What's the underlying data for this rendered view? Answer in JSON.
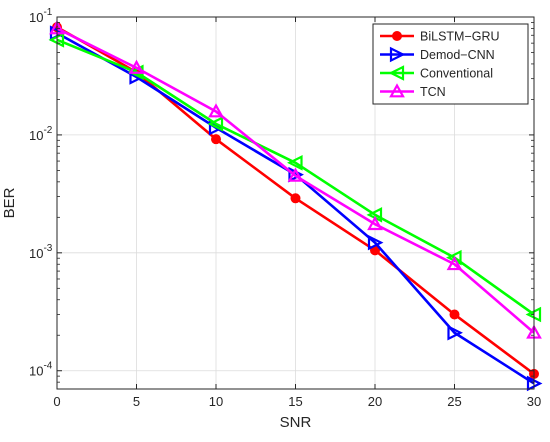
{
  "chart_data": {
    "type": "line",
    "title": "",
    "xlabel": "SNR",
    "ylabel": "BER",
    "x": [
      0,
      5,
      10,
      15,
      20,
      25,
      30
    ],
    "xlim": [
      0,
      30
    ],
    "ylim": [
      7e-05,
      0.1
    ],
    "yscale": "log",
    "grid": true,
    "legend_position": "top-right",
    "x_ticks": [
      {
        "value": 0,
        "label": "0"
      },
      {
        "value": 5,
        "label": "5"
      },
      {
        "value": 10,
        "label": "10"
      },
      {
        "value": 15,
        "label": "15"
      },
      {
        "value": 20,
        "label": "20"
      },
      {
        "value": 25,
        "label": "25"
      },
      {
        "value": 30,
        "label": "30"
      }
    ],
    "y_ticks": [
      {
        "value": 0.1,
        "base": "10",
        "exp": "-1"
      },
      {
        "value": 0.01,
        "base": "10",
        "exp": "-2"
      },
      {
        "value": 0.001,
        "base": "10",
        "exp": "-3"
      },
      {
        "value": 0.0001,
        "base": "10",
        "exp": "-4"
      }
    ],
    "series": [
      {
        "name": "BiLSTM−GRU",
        "color": "#ff0000",
        "marker": "circle",
        "values": [
          0.082,
          0.034,
          0.0092,
          0.0029,
          0.00105,
          0.0003,
          9.4e-05
        ]
      },
      {
        "name": "Demod−CNN",
        "color": "#0000ff",
        "marker": "triangle-right",
        "values": [
          0.073,
          0.031,
          0.0115,
          0.0046,
          0.00122,
          0.00021,
          7.8e-05
        ]
      },
      {
        "name": "Conventional",
        "color": "#00ff00",
        "marker": "triangle-left",
        "values": [
          0.064,
          0.034,
          0.0124,
          0.0058,
          0.0021,
          0.00091,
          0.0003
        ]
      },
      {
        "name": "TCN",
        "color": "#ff00ff",
        "marker": "triangle-up",
        "values": [
          0.08,
          0.037,
          0.0158,
          0.0045,
          0.00175,
          0.0008,
          0.00021
        ]
      }
    ]
  }
}
